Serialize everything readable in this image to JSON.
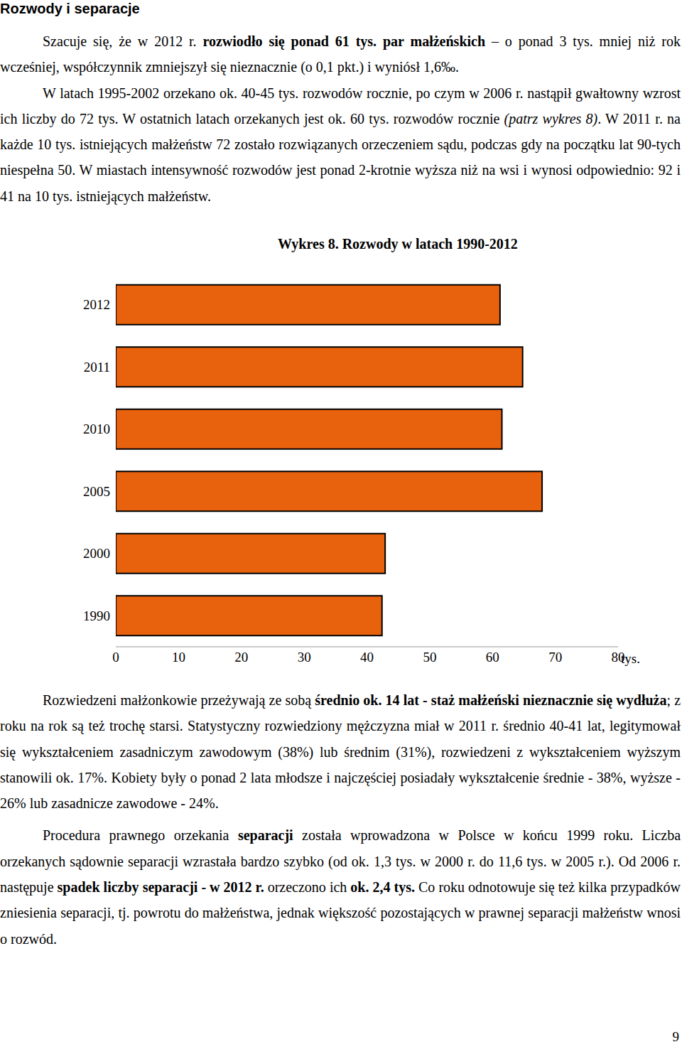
{
  "heading": "Rozwody i separacje",
  "paragraphs_before": [
    [
      {
        "text": "Szacuje się, że w 2012 r. "
      },
      {
        "text": "rozwiodło się ponad 61 tys. par małżeńskich",
        "bold": true
      },
      {
        "text": " – o ponad 3 tys. mniej niż rok wcześniej, współczynnik zmniejszył się nieznacznie (o 0,1 pkt.) i wyniósł 1,6‰."
      }
    ],
    [
      {
        "text": "W latach 1995-2002 orzekano ok. 40-45 tys. rozwodów rocznie, po czym w 2006 r. nastąpił gwałtowny wzrost ich liczby do 72 tys. W ostatnich latach orzekanych jest ok. 60 tys. rozwodów rocznie "
      },
      {
        "text": "(patrz wykres 8)",
        "italic": true
      },
      {
        "text": ". W 2011 r. na każde 10 tys. istniejących małżeństw 72 zostało rozwiązanych orzeczeniem sądu, podczas gdy na początku lat 90-tych niespełna 50. W miastach intensywność rozwodów jest ponad 2-krotnie wyższa niż na wsi i wynosi odpowiednio: 92 i 41 na 10 tys. istniejących małżeństw."
      }
    ]
  ],
  "chart_data": {
    "type": "bar",
    "title": "Wykres 8. Rozwody w latach 1990-2012",
    "orientation": "horizontal",
    "categories": [
      "2012",
      "2011",
      "2010",
      "2005",
      "2000",
      "1990"
    ],
    "values": [
      61.2,
      64.8,
      61.5,
      67.9,
      42.9,
      42.4
    ],
    "color": "#e8620e",
    "x_label": "tys.",
    "xlim": [
      0,
      80
    ],
    "xticks": [
      0,
      10,
      20,
      30,
      40,
      50,
      60,
      70,
      80
    ],
    "grid": false
  },
  "paragraphs_after": [
    [
      {
        "text": "Rozwiedzeni małżonkowie przeżywają ze sobą "
      },
      {
        "text": "średnio ok. 14 lat - staż małżeński nieznacznie się wydłuża",
        "bold": true
      },
      {
        "text": "; z roku na rok są też trochę starsi. Statystyczny rozwiedziony mężczyzna miał w 2011 r. średnio 40-41 lat, legitymował się wykształceniem zasadniczym zawodowym (38%) lub średnim (31%), rozwiedzeni z wykształceniem wyższym stanowili ok. 17%. Kobiety były o ponad 2 lata młodsze i najczęściej posiadały wykształcenie średnie - 38%, wyższe - 26% lub zasadnicze zawodowe - 24%."
      }
    ],
    [
      {
        "text": "Procedura prawnego orzekania "
      },
      {
        "text": "separacji",
        "bold": true
      },
      {
        "text": " została wprowadzona w Polsce w końcu 1999 roku. Liczba orzekanych sądownie separacji wzrastała bardzo szybko (od ok. 1,3 tys. w 2000 r. do 11,6 tys. w 2005 r.). Od 2006 r. następuje "
      },
      {
        "text": "spadek liczby separacji - w 2012 r.",
        "bold": true
      },
      {
        "text": " orzeczono ich "
      },
      {
        "text": "ok. 2,4 tys.",
        "bold": true
      },
      {
        "text": " Co roku odnotowuje się też kilka przypadków zniesienia separacji, tj. powrotu do małżeństwa, jednak większość pozostających w prawnej separacji małżeństw wnosi o rozwód."
      }
    ]
  ],
  "page_number": "9"
}
